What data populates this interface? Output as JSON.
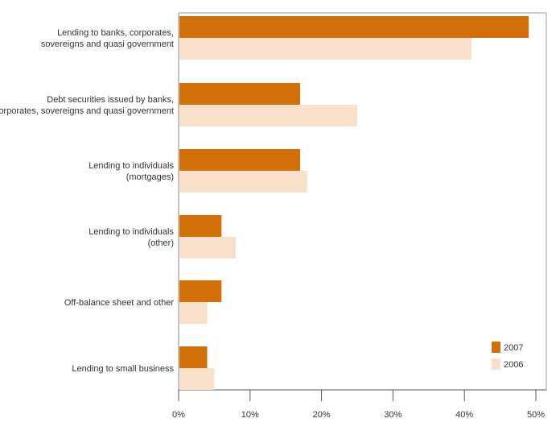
{
  "chart_data": {
    "type": "bar",
    "orientation": "horizontal",
    "title": "",
    "xlabel": "",
    "ylabel": "",
    "xlim": [
      0,
      50
    ],
    "x_ticks": [
      "0%",
      "10%",
      "20%",
      "30%",
      "40%",
      "50%"
    ],
    "x_tick_values": [
      0,
      10,
      20,
      30,
      40,
      50
    ],
    "grid": false,
    "legend_position": "bottom-right",
    "categories": [
      [
        "Lending to banks, corporates,",
        "sovereigns and quasi government"
      ],
      [
        "Debt securities issued by banks,",
        "corporates, sovereigns and quasi government"
      ],
      [
        "Lending to individuals",
        "(mortgages)"
      ],
      [
        "Lending to individuals",
        "(other)"
      ],
      [
        "Off-balance sheet and other"
      ],
      [
        "Lending to small business"
      ]
    ],
    "series": [
      {
        "name": "2007",
        "color": "#d36f0a",
        "values": [
          49,
          17,
          17,
          6,
          6,
          4
        ]
      },
      {
        "name": "2006",
        "color": "#f8e0cb",
        "values": [
          41,
          25,
          18,
          8,
          4,
          5
        ]
      }
    ]
  }
}
